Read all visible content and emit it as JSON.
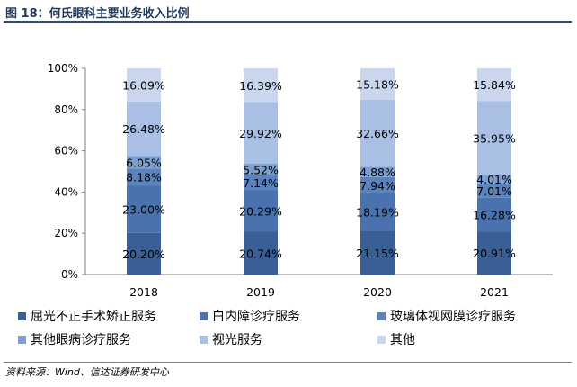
{
  "figure": {
    "title": "图 18：何氏眼科主要业务收入比例",
    "source": "资料来源：Wind、信达证券研发中心"
  },
  "chart_data": {
    "type": "bar",
    "stacked": true,
    "percent": true,
    "categories": [
      "2018",
      "2019",
      "2020",
      "2021"
    ],
    "yticks": [
      "0%",
      "20%",
      "40%",
      "60%",
      "80%",
      "100%"
    ],
    "ylim": [
      0,
      100
    ],
    "grid": false,
    "legend_position": "bottom",
    "series": [
      {
        "name": "屈光不正手术矫正服务",
        "color": "#3A5F95",
        "values": [
          20.2,
          20.74,
          21.15,
          20.91
        ],
        "labels": [
          "20.20%",
          "20.74%",
          "21.15%",
          "20.91%"
        ]
      },
      {
        "name": "白内障诊疗服务",
        "color": "#4A72AE",
        "values": [
          23.0,
          20.29,
          18.19,
          16.28
        ],
        "labels": [
          "23.00%",
          "20.29%",
          "18.19%",
          "16.28%"
        ]
      },
      {
        "name": "玻璃体视网膜诊疗服务",
        "color": "#5B84BE",
        "values": [
          8.18,
          7.14,
          7.94,
          7.01
        ],
        "labels": [
          "8.18%",
          "7.14%",
          "7.94%",
          "7.01%"
        ]
      },
      {
        "name": "其他眼病诊疗服务",
        "color": "#7D9FD0",
        "values": [
          6.05,
          5.52,
          4.88,
          4.01
        ],
        "labels": [
          "6.05%",
          "5.52%",
          "4.88%",
          "4.01%"
        ]
      },
      {
        "name": "视光服务",
        "color": "#A9BFE3",
        "values": [
          26.48,
          29.92,
          32.66,
          35.95
        ],
        "labels": [
          "26.48%",
          "29.92%",
          "32.66%",
          "35.95%"
        ]
      },
      {
        "name": "其他",
        "color": "#C9D6EE",
        "values": [
          16.09,
          16.39,
          15.18,
          15.84
        ],
        "labels": [
          "16.09%",
          "16.39%",
          "15.18%",
          "15.84%"
        ]
      }
    ]
  }
}
